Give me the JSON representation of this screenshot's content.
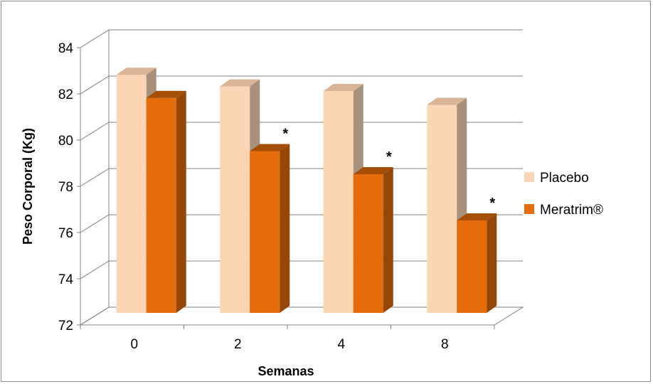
{
  "chart_data": {
    "type": "bar",
    "categories": [
      "0",
      "2",
      "4",
      "8"
    ],
    "series": [
      {
        "name": "Placebo",
        "values": [
          82.3,
          81.8,
          81.6,
          81.0
        ],
        "color": "#fcd5b5"
      },
      {
        "name": "Meratrim®",
        "values": [
          81.3,
          79.0,
          78.0,
          76.0
        ],
        "color": "#e46c0a"
      }
    ],
    "annotations": [
      "",
      "*",
      "*",
      "*"
    ],
    "xlabel": "Semanas",
    "ylabel": "Peso Corporal (Kg)",
    "ylim": [
      72,
      84
    ],
    "yticks": [
      "72",
      "74",
      "76",
      "78",
      "80",
      "82",
      "84"
    ],
    "grid": true,
    "legend_position": "right",
    "style": "3d-clustered-column"
  }
}
